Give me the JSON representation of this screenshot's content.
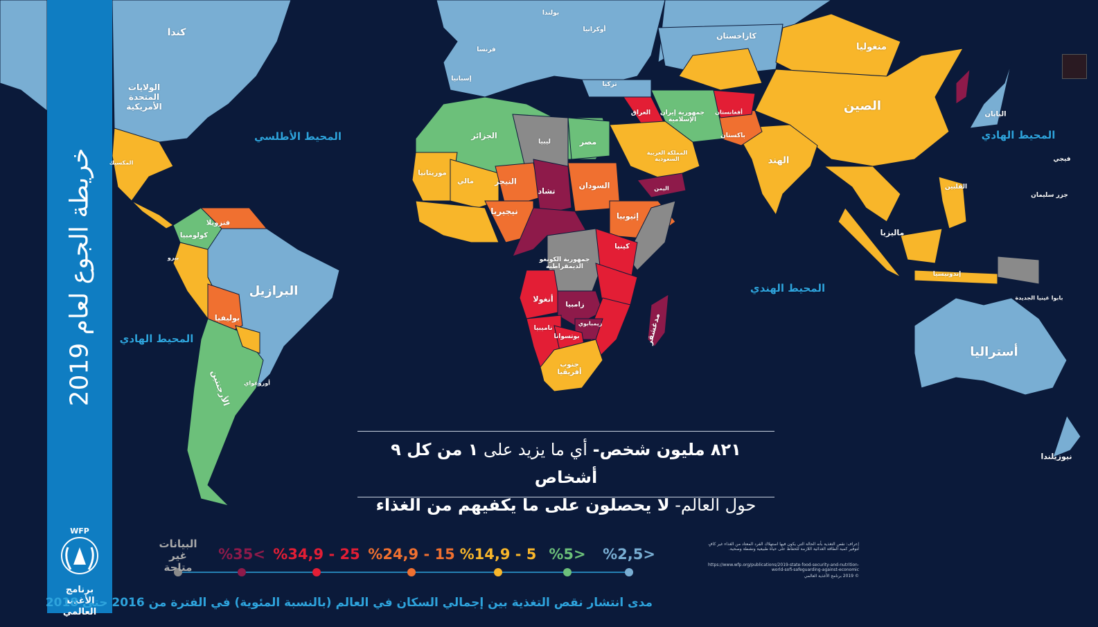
{
  "sidebar": {
    "title": "خريطة الجوع لعام 2019",
    "logo_acronym": "WFP",
    "logo_name": "برنامج الأغذية العالمي"
  },
  "map": {
    "oceans": [
      "المحيط الأطلسي",
      "المحيط الهادي",
      "المحيط الهادي",
      "المحيط الهندي"
    ],
    "labels": [
      "كندا",
      "الولايات المتحدة الأمريكية",
      "البرازيل",
      "بوليفيا",
      "كولومبيا",
      "فنزويلا",
      "الأرجنتين",
      "كازاخستان",
      "منغوليا",
      "الصين",
      "الهند",
      "الجزائر",
      "مصر",
      "ليبيا",
      "تشاد",
      "السودان",
      "النيجر",
      "مالي",
      "موريتانيا",
      "نيجيريا",
      "إثيوبيا",
      "كينيا",
      "جمهورية الكونغو الديمقراطية",
      "أنغولا",
      "زامبيا",
      "ناميبيا",
      "بوتسوانا",
      "جنوب أفريقيا",
      "مدغشقر",
      "أستراليا",
      "اليابان",
      "الفلبين",
      "ماليزيا",
      "إندونيسيا",
      "باكستان",
      "أفغانستان",
      "جمهورية إيران الإسلامية",
      "العراق",
      "تركيا",
      "المملكة العربية السعودية",
      "اليمن",
      "فرنسا",
      "إسبانيا",
      "أوكرانيا",
      "بولندا",
      "نيوزيلندا",
      "بابوا غينيا الجديدة",
      "جزر سليمان",
      "فيجي",
      "زيمبابوي",
      "المكسيك",
      "بيرو",
      "أوروغواي"
    ]
  },
  "headline": {
    "line1_bold_a": "٨٢١ مليون شخص-",
    "line1_regular": "أي ما يزيد على",
    "line1_bold_b": "١ من كل ٩ أشخاص",
    "line2_regular": "حول العالم-",
    "line2_bold": "لا يحصلون على ما يكفيهم من الغذاء"
  },
  "legend": {
    "items": [
      {
        "label": "%2,5>",
        "color": "#79aed3"
      },
      {
        "label": "%5>",
        "color": "#6cc07a"
      },
      {
        "label": "%14,9 - 5",
        "color": "#f8b62a"
      },
      {
        "label": "%24,9 - 15",
        "color": "#f07030"
      },
      {
        "label": "%34,9 - 25",
        "color": "#e31e35"
      },
      {
        "label": "%35<",
        "color": "#8e1a4a"
      },
      {
        "label": "البيانات غير متاحة",
        "color": "#8a8a8a"
      }
    ],
    "caption": "مدى انتشار نقص التغذية بين إجمالي السكان في العالم (بالنسبة المئوية) في الفترة من 2016 حتى 2018"
  },
  "notes": [
    "إعراف: نقص التغذية بأنه الحالة التي يكون فيها استهلاك الفرد المعتاد من الغذاء غير كافٍ لتوفير كمية الطاقة الغذائية اللازمة للحفاظ على حياة طبيعية ونشطة وصحية.",
    "https://www.wfp.org/publications/2019-state-food-security-and-nutrition-world-sofi-safeguarding-against-economic",
    "© 2019 برنامج الأغذية العالمي"
  ]
}
